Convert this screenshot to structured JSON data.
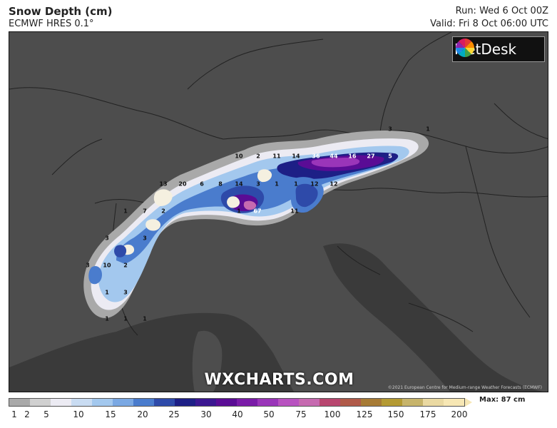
{
  "header": {
    "title": "Snow Depth (cm)",
    "model": "ECMWF HRES 0.1°",
    "run": "Run: Wed 6 Oct 00Z",
    "valid": "Valid: Fri 8 Oct 06:00 UTC"
  },
  "logo": {
    "text": "MetDesk"
  },
  "watermark": "WXCHARTS.COM",
  "copyright": "©2021 European Centre for Medium-range Weather Forecasts (ECMWF)",
  "colors": {
    "land": "#4d4d4d",
    "sea": "#3a3a3a",
    "border": "#222222"
  },
  "map_labels": [
    {
      "text": "3",
      "w": false
    },
    {
      "text": "1",
      "w": false
    },
    {
      "text": "10",
      "w": false
    },
    {
      "text": "2",
      "w": false
    },
    {
      "text": "11",
      "w": false
    },
    {
      "text": "14",
      "w": false
    },
    {
      "text": "36",
      "w": true
    },
    {
      "text": "44",
      "w": true
    },
    {
      "text": "16",
      "w": true
    },
    {
      "text": "27",
      "w": true
    },
    {
      "text": "5",
      "w": true
    },
    {
      "text": "13",
      "w": false
    },
    {
      "text": "20",
      "w": false
    },
    {
      "text": "6",
      "w": false
    },
    {
      "text": "8",
      "w": false
    },
    {
      "text": "14",
      "w": false
    },
    {
      "text": "3",
      "w": false
    },
    {
      "text": "1",
      "w": false
    },
    {
      "text": "1",
      "w": false
    },
    {
      "text": "12",
      "w": false
    },
    {
      "text": "12",
      "w": false
    },
    {
      "text": "11",
      "w": false
    },
    {
      "text": "1",
      "w": false
    },
    {
      "text": "67",
      "w": true
    },
    {
      "text": "1",
      "w": false
    },
    {
      "text": "7",
      "w": false
    },
    {
      "text": "2",
      "w": false
    },
    {
      "text": "3",
      "w": false
    },
    {
      "text": "3",
      "w": false
    },
    {
      "text": "10",
      "w": false
    },
    {
      "text": "2",
      "w": false
    },
    {
      "text": "3",
      "w": false
    },
    {
      "text": "1",
      "w": false
    },
    {
      "text": "3",
      "w": false
    },
    {
      "text": "1",
      "w": false
    },
    {
      "text": "1",
      "w": false
    },
    {
      "text": "1",
      "w": false
    }
  ],
  "legend": {
    "colors": [
      "#a9a9a9",
      "#d0d0d0",
      "#ecebf3",
      "#c9dcf2",
      "#a3c8ee",
      "#7aa8e3",
      "#4a7ccd",
      "#2e4aa9",
      "#1d1f86",
      "#3b1791",
      "#5a0c95",
      "#7a1ba8",
      "#9a35b9",
      "#b852c0",
      "#c66ab0",
      "#b8466f",
      "#b05a49",
      "#a77b35",
      "#b49a33",
      "#c7b46b",
      "#ead9a2",
      "#f7e7b4"
    ],
    "ticks": [
      "1",
      "2",
      "5",
      "10",
      "15",
      "20",
      "25",
      "30",
      "40",
      "50",
      "75",
      "100",
      "125",
      "150",
      "175",
      "200"
    ],
    "max_label": "Max: 87 cm"
  }
}
